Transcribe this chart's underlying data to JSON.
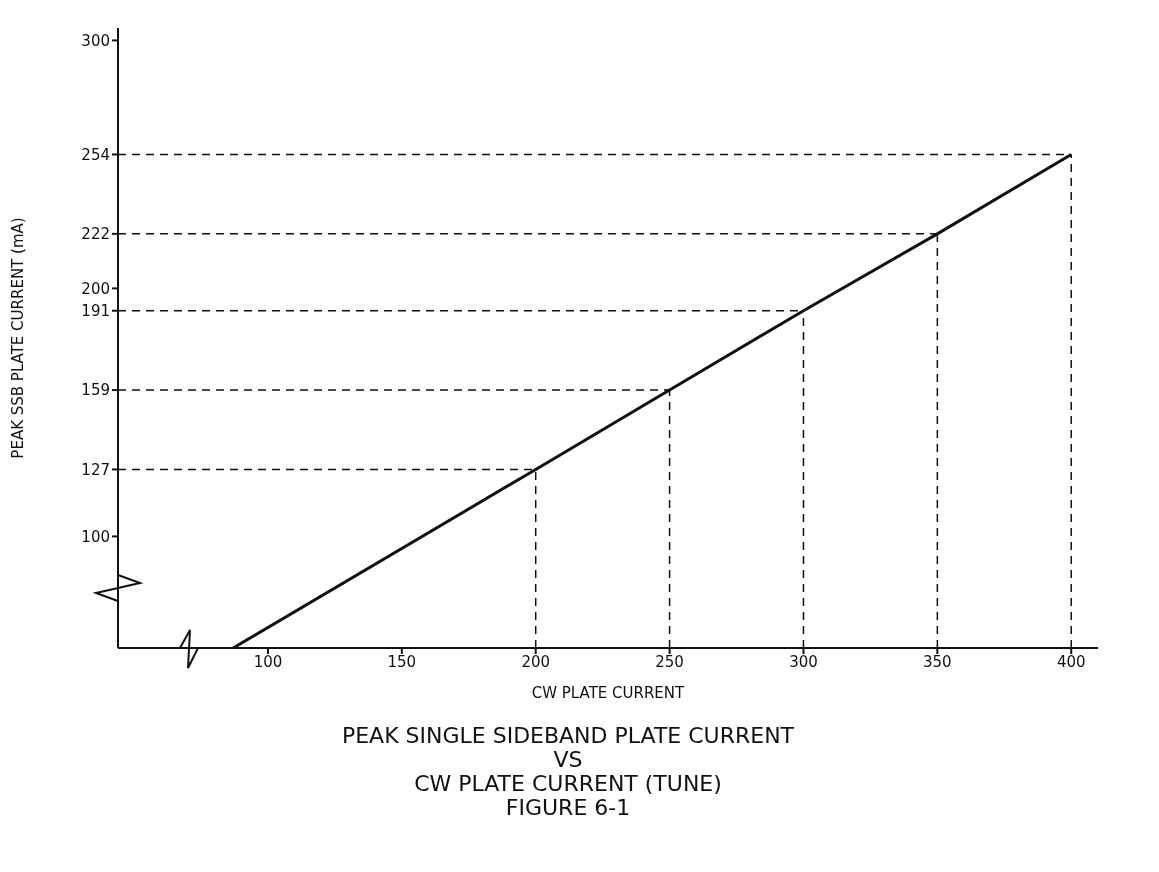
{
  "chart_data": {
    "type": "line",
    "title": "PEAK SINGLE SIDEBAND PLATE CURRENT\nVS\nCW PLATE CURRENT (TUNE)",
    "xlabel": "CW PLATE CURRENT",
    "ylabel": "PEAK SSB PLATE CURRENT (mA)",
    "annotations": [
      "FIGURE 6-1"
    ],
    "x": [
      87,
      200,
      250,
      300,
      350,
      400
    ],
    "series": [
      {
        "color": "#111111",
        "values": [
          55,
          127,
          159,
          191,
          222,
          254
        ]
      }
    ],
    "xlim": [
      44,
      410
    ],
    "xticks": [
      100,
      150,
      200,
      250,
      300,
      350,
      400
    ],
    "ylim": [
      55,
      305
    ],
    "yticks": [
      100,
      127,
      159,
      191,
      200,
      222,
      254,
      300
    ],
    "ref_lines": [
      {
        "axis": "y",
        "value": 127,
        "line_style": "dashed"
      },
      {
        "axis": "y",
        "value": 159,
        "line_style": "dashed"
      },
      {
        "axis": "y",
        "value": 191,
        "line_style": "dashed"
      },
      {
        "axis": "y",
        "value": 222,
        "line_style": "dashed"
      },
      {
        "axis": "y",
        "value": 254,
        "line_style": "dashed"
      },
      {
        "axis": "x",
        "value": 200,
        "line_style": "dashed"
      },
      {
        "axis": "x",
        "value": 250,
        "line_style": "dashed"
      },
      {
        "axis": "x",
        "value": 300,
        "line_style": "dashed"
      },
      {
        "axis": "x",
        "value": 350,
        "line_style": "dashed"
      },
      {
        "axis": "x",
        "value": 400,
        "line_style": "dashed"
      }
    ],
    "marker": "none",
    "line_style": "solid"
  }
}
